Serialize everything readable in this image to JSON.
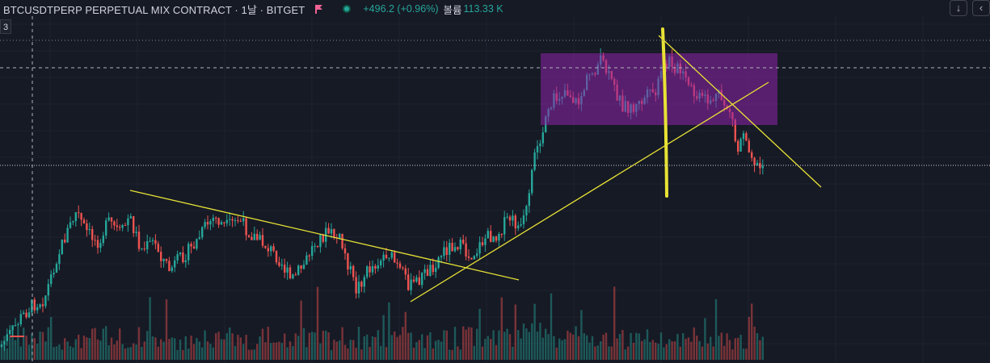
{
  "header": {
    "title": "BTCUSDTPERP PERPETUAL MIX CONTRACT · 1날 · BITGET",
    "change": "+496.2 (+0.96%)",
    "volume_label": "볼륨",
    "volume_value": "113.33 K"
  },
  "badge": "3",
  "buttons": {
    "down": "↓",
    "chevron": "‹"
  },
  "colors": {
    "background": "#161a25",
    "up": "#26a69a",
    "down": "#ef5350",
    "trendline": "#e8e335",
    "box": "#8e24aa"
  },
  "icons": [
    "flag-icon",
    "status-dot-icon",
    "arrow-down-icon",
    "chevron-left-icon"
  ],
  "chart_data": {
    "type": "candlestick",
    "panes": [
      "price",
      "volume"
    ],
    "grid": true,
    "annotations": [
      "descending trendline",
      "ascending trendline",
      "range box",
      "vertical marker"
    ]
  }
}
